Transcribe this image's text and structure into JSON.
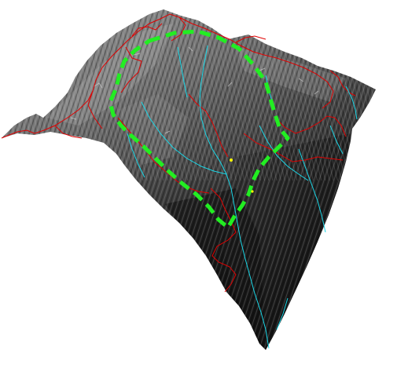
{
  "colors": {
    "background": "#ffffff",
    "terrain_dark": "#141414",
    "terrain_mid": "#5a5a5a",
    "terrain_light": "#a8a8a8",
    "boundary_line": "#e00000",
    "stream_line": "#19d6e6",
    "study_area_outline": "#22ee22",
    "marker_point": "#ffff00"
  },
  "layers": [
    {
      "name": "terrain-surface",
      "kind": "shaded 3D elevation mesh"
    },
    {
      "name": "boundary-lines",
      "kind": "red linework"
    },
    {
      "name": "stream-network",
      "kind": "cyan linework"
    },
    {
      "name": "study-area-outline",
      "kind": "green dashed polygon"
    },
    {
      "name": "marker-points",
      "kind": "yellow points"
    }
  ]
}
